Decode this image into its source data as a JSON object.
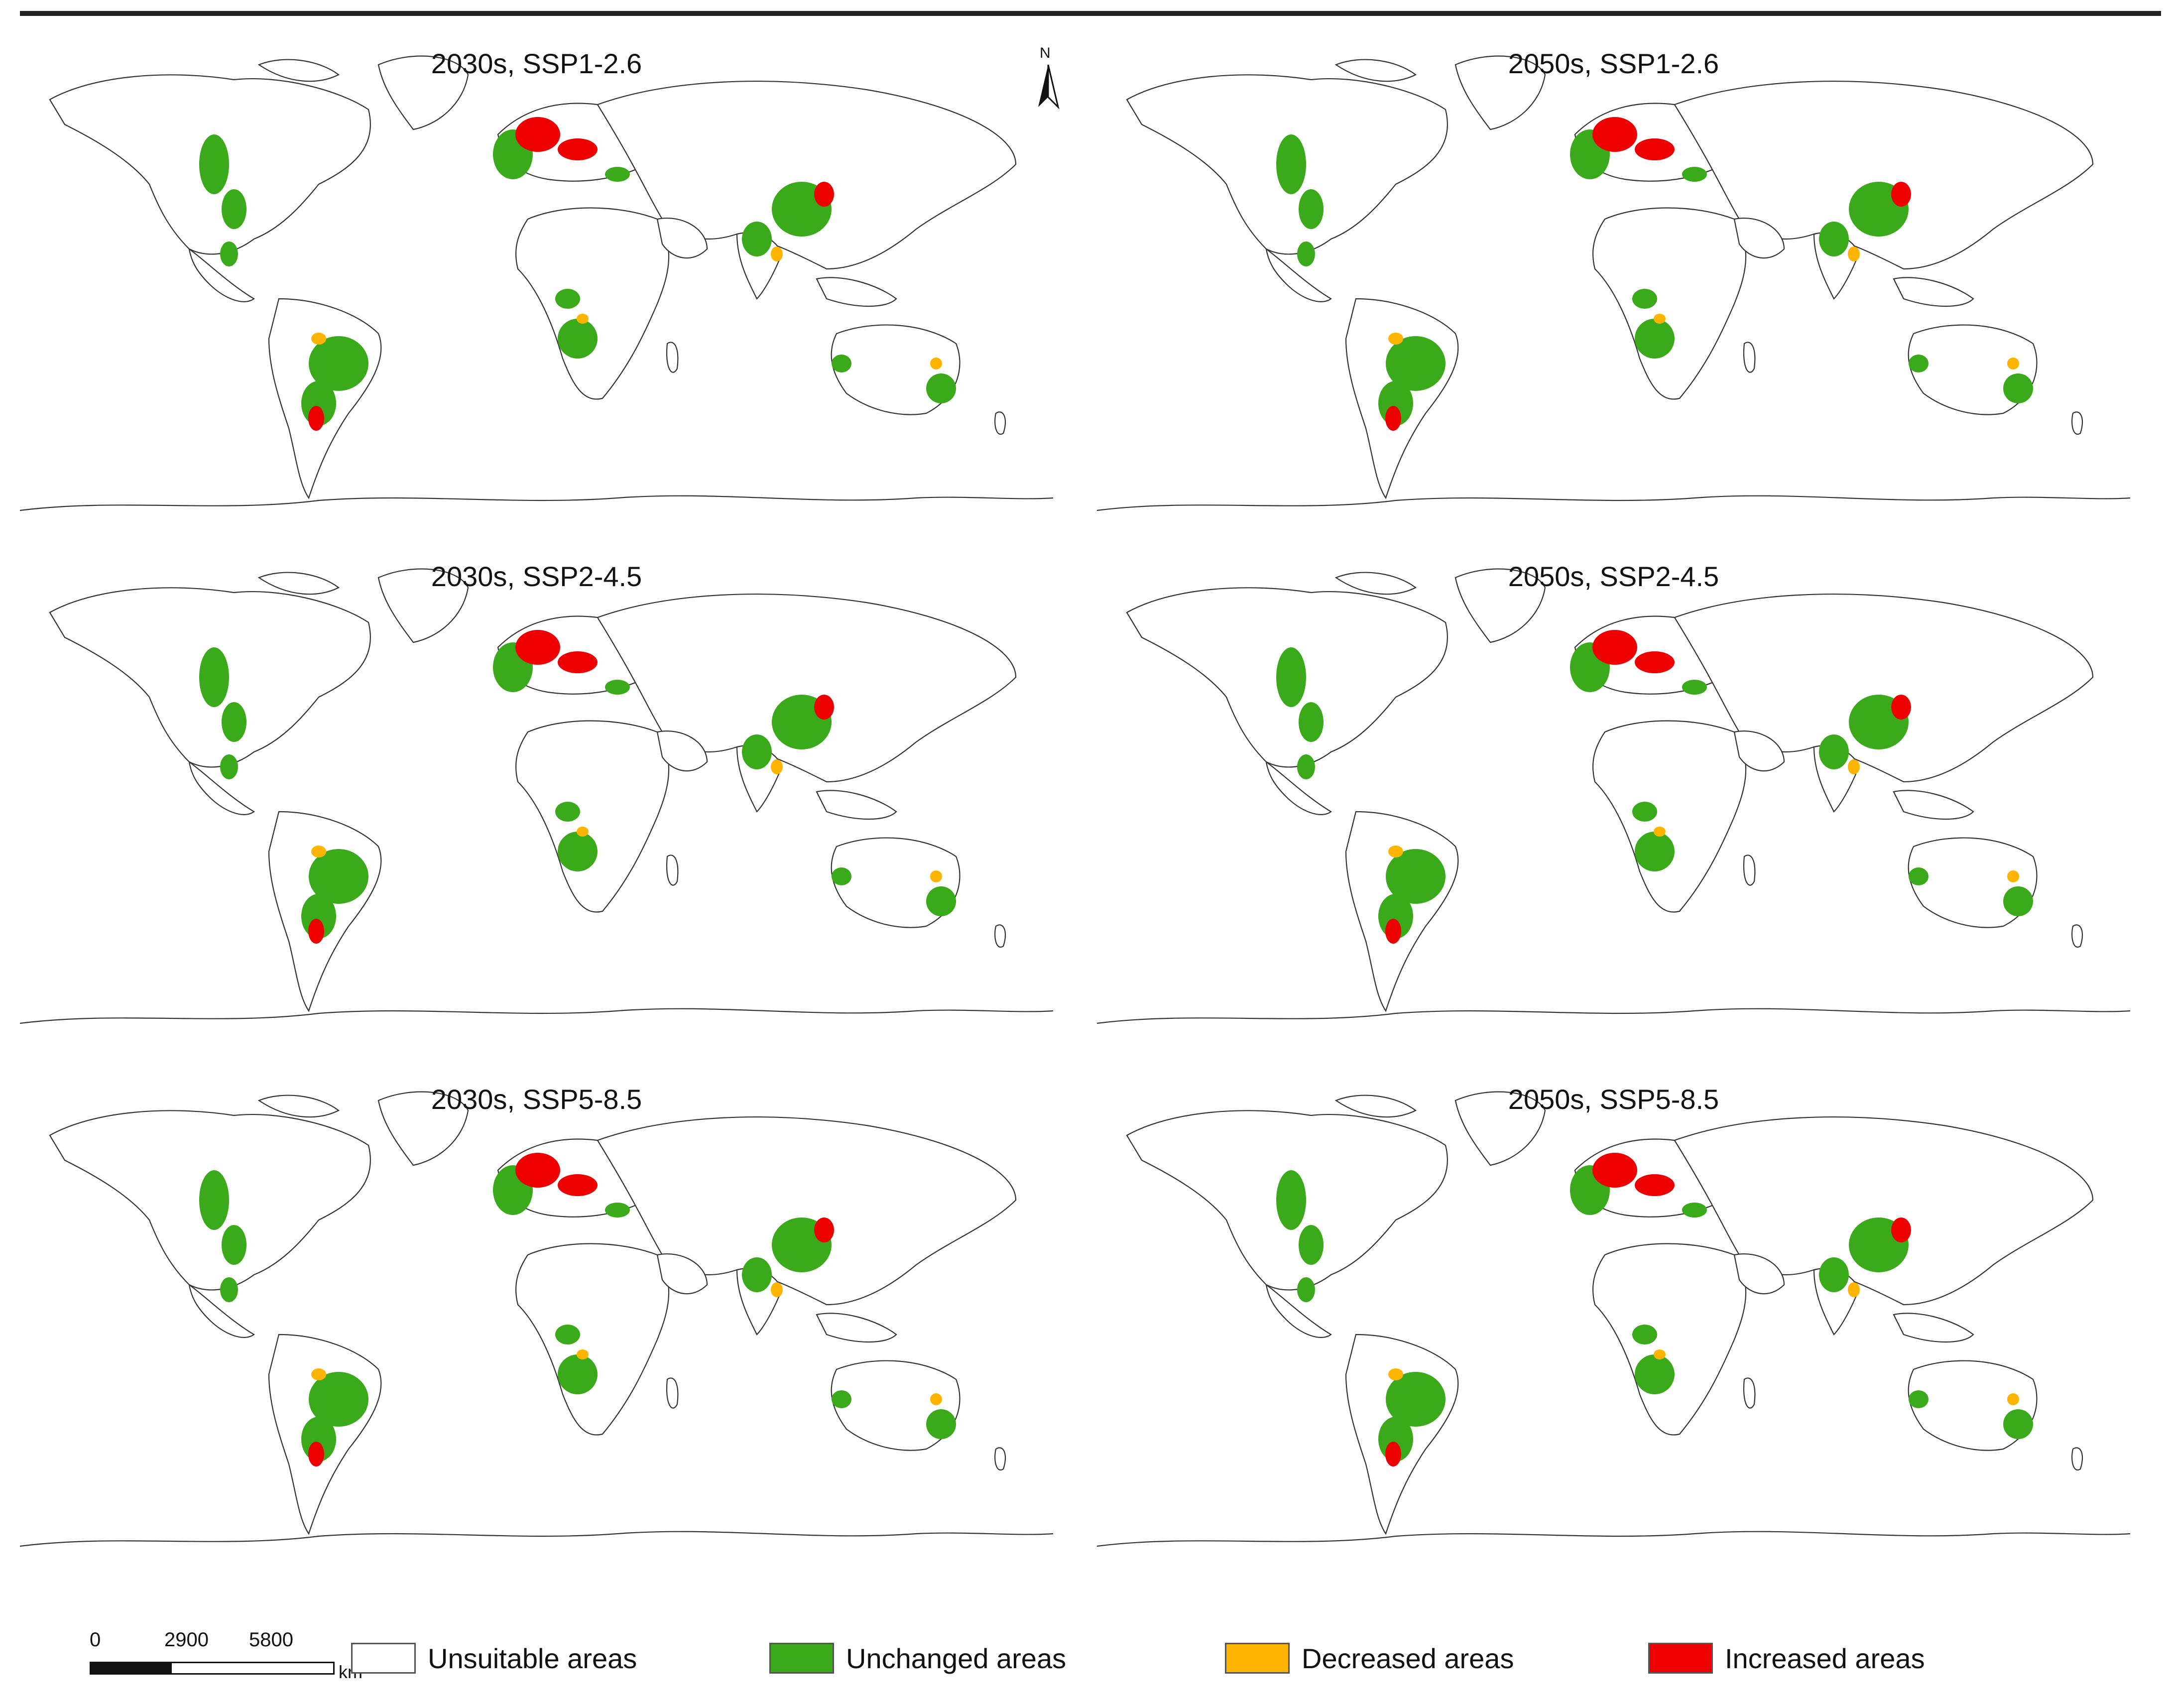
{
  "panels": [
    {
      "title": "2030s, SSP1-2.6"
    },
    {
      "title": "2050s, SSP1-2.6"
    },
    {
      "title": "2030s, SSP2-4.5"
    },
    {
      "title": "2050s, SSP2-4.5"
    },
    {
      "title": "2030s, SSP5-8.5"
    },
    {
      "title": "2050s, SSP5-8.5"
    }
  ],
  "north_arrow": {
    "label": "N"
  },
  "scale": {
    "ticks": [
      "0",
      "2900",
      "5800"
    ],
    "unit": "km"
  },
  "legend": [
    {
      "label": "Unsuitable areas",
      "color": "#ffffff"
    },
    {
      "label": "Unchanged areas",
      "color": "#3aaa1a"
    },
    {
      "label": "Decreased areas",
      "color": "#ffb400"
    },
    {
      "label": "Increased areas",
      "color": "#ee0000"
    }
  ]
}
